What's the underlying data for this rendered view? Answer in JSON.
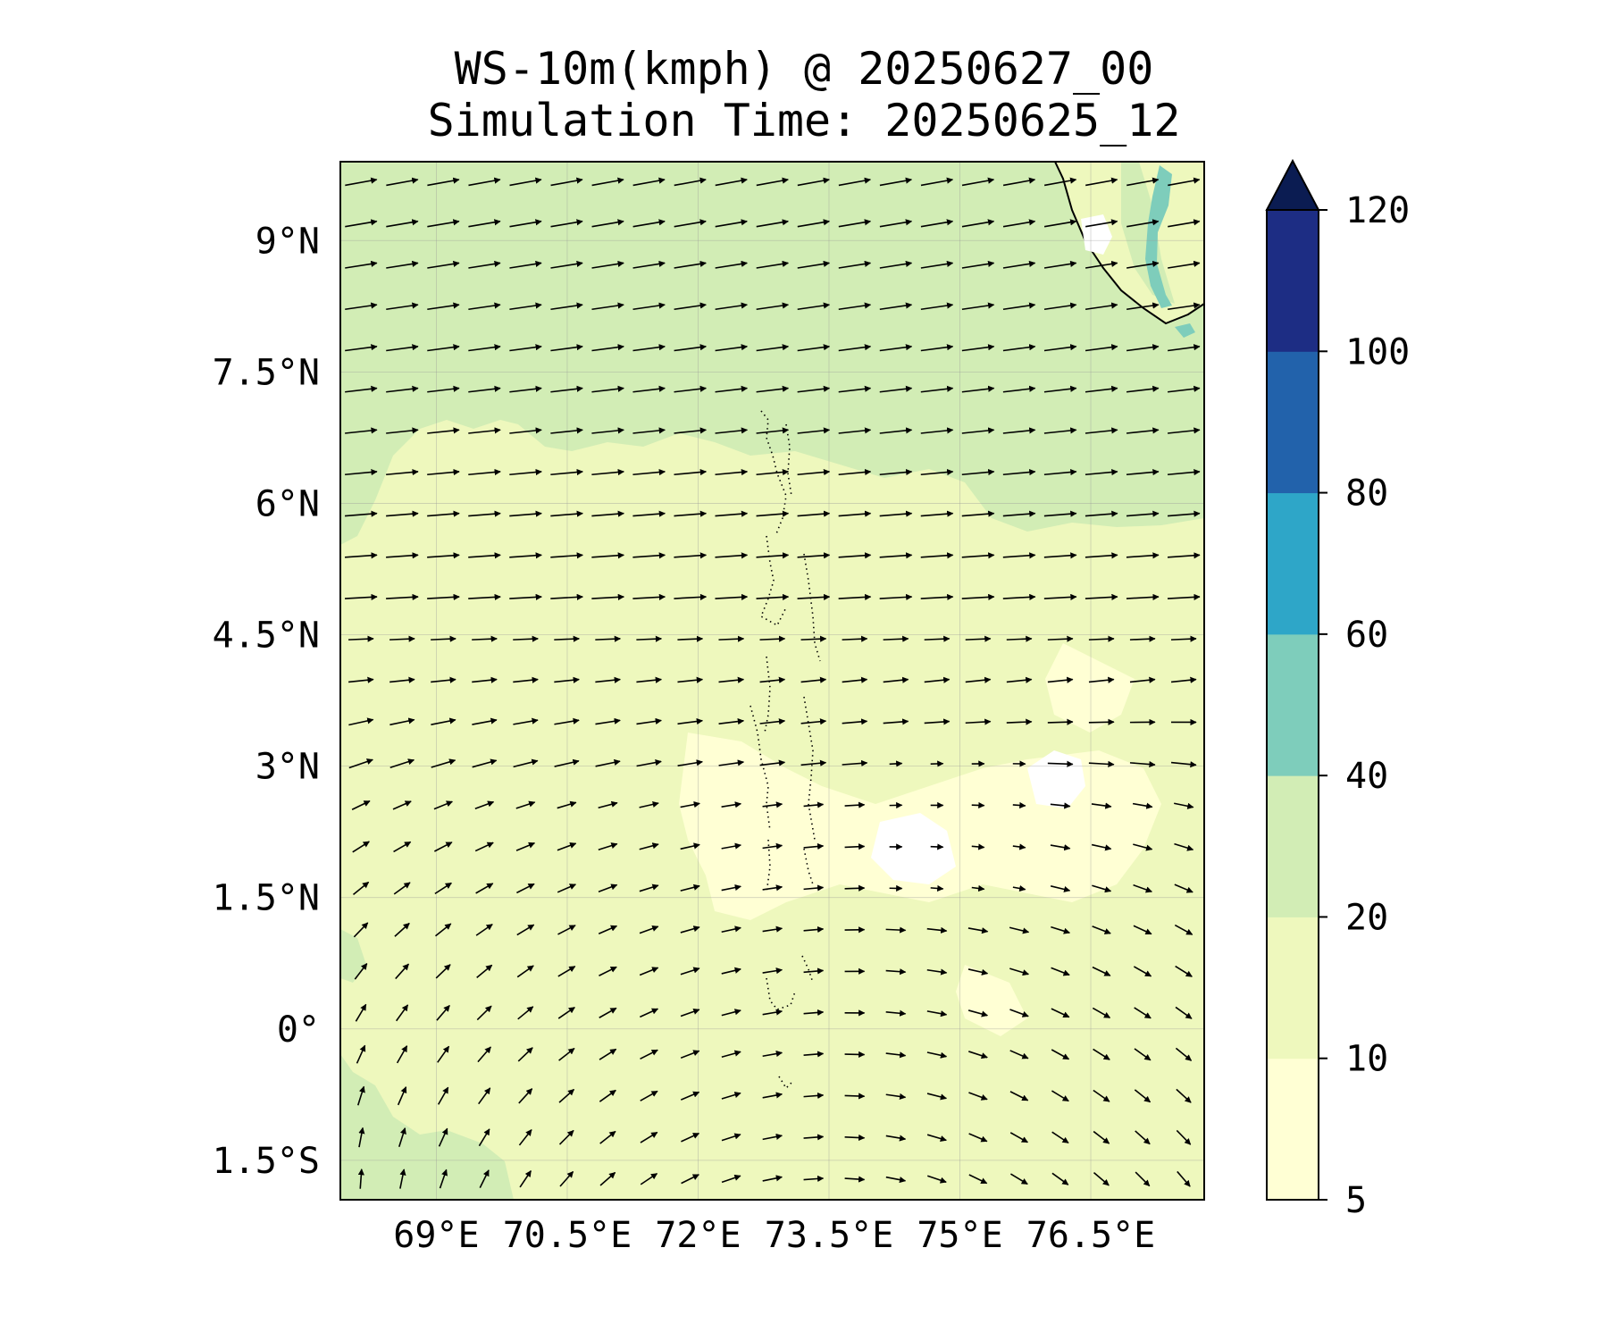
{
  "title": {
    "line1": "WS-10m(kmph) @ 20250627_00",
    "line2": "Simulation Time: 20250625_12"
  },
  "map": {
    "type": "contour+quiver",
    "lon_range": [
      67.9,
      77.8
    ],
    "lat_range": [
      -1.95,
      9.9
    ],
    "x_ticks": [
      {
        "value": 69,
        "label": "69°E"
      },
      {
        "value": 70.5,
        "label": "70.5°E"
      },
      {
        "value": 72,
        "label": "72°E"
      },
      {
        "value": 73.5,
        "label": "73.5°E"
      },
      {
        "value": 75,
        "label": "75°E"
      },
      {
        "value": 76.5,
        "label": "76.5°E"
      }
    ],
    "y_ticks": [
      {
        "value": 9,
        "label": "9°N"
      },
      {
        "value": 7.5,
        "label": "7.5°N"
      },
      {
        "value": 6,
        "label": "6°N"
      },
      {
        "value": 4.5,
        "label": "4.5°N"
      },
      {
        "value": 3,
        "label": "3°N"
      },
      {
        "value": 1.5,
        "label": "1.5°N"
      },
      {
        "value": 0,
        "label": "0°"
      },
      {
        "value": -1.5,
        "label": "1.5°S"
      }
    ],
    "grid": true,
    "colors": {
      "lt10": "#ffffd4",
      "10-20": "#eef8bd",
      "20-40": "#d2edb5",
      "40-60": "#7ecdbb",
      "60-80": "#2ea6c8",
      "80-100": "#2262ab",
      "100-120": "#1d2d84",
      "gt120": "#0b1c52"
    }
  },
  "colorbar": {
    "levels": [
      "5",
      "10",
      "20",
      "40",
      "60",
      "80",
      "100",
      "120"
    ],
    "extend": "max",
    "colors": [
      "#ffffd4",
      "#eef8bd",
      "#d2edb5",
      "#7ecdbb",
      "#2ea6c8",
      "#2262ab",
      "#1d2d84"
    ],
    "extend_color": "#0b1c52"
  }
}
